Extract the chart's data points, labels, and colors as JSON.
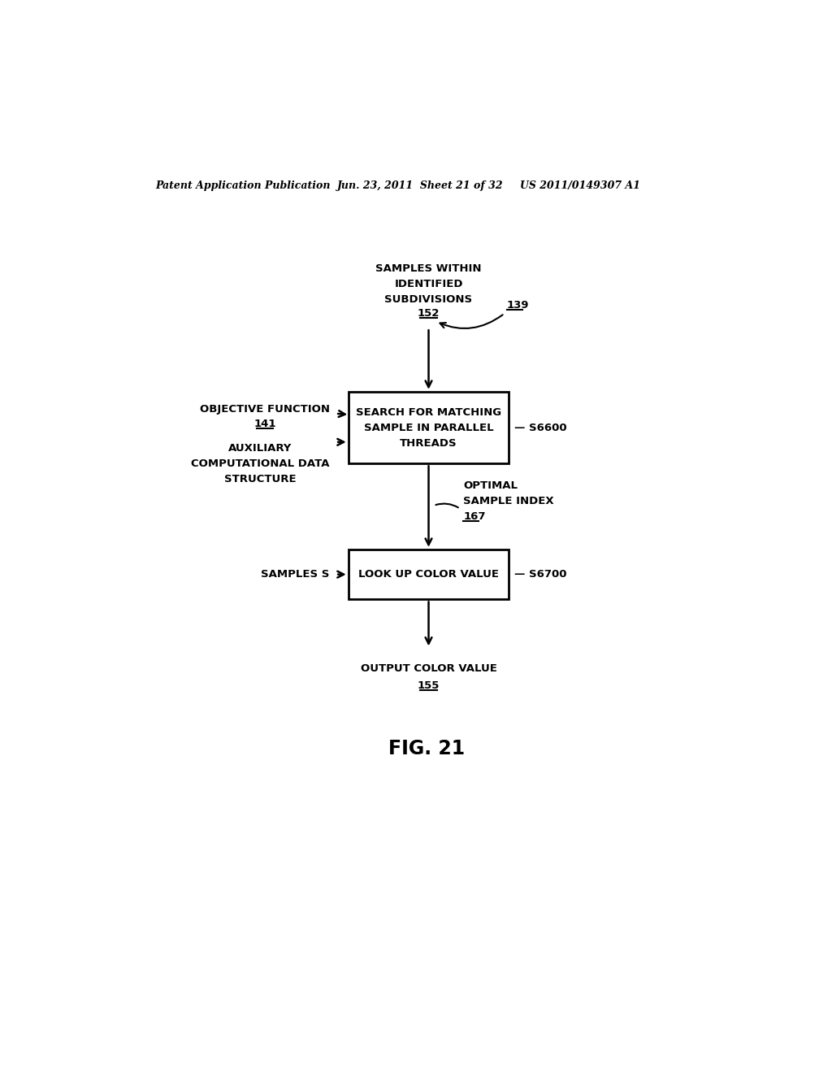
{
  "bg_color": "#ffffff",
  "header_left": "Patent Application Publication",
  "header_mid": "Jun. 23, 2011  Sheet 21 of 32",
  "header_right": "US 2011/0149307 A1",
  "fig_label": "FIG. 21",
  "box1_text": "SEARCH FOR MATCHING\nSAMPLE IN PARALLEL\nTHREADS",
  "box1_label": "S6600",
  "box2_text": "LOOK UP COLOR VALUE",
  "box2_label": "S6700",
  "top_input_text": "SAMPLES WITHIN\nIDENTIFIED\nSUBDIVISIONS",
  "top_input_ref": "152",
  "arrow_ref": "139",
  "obj_func_text": "OBJECTIVE FUNCTION",
  "obj_func_ref": "141",
  "aux_text": "AUXILIARY\nCOMPUTATIONAL DATA\nSTRUCTURE",
  "mid_output_text": "OPTIMAL\nSAMPLE INDEX",
  "mid_output_ref": "167",
  "samples_s_text": "SAMPLES S",
  "output_text": "OUTPUT COLOR VALUE",
  "output_ref": "155"
}
